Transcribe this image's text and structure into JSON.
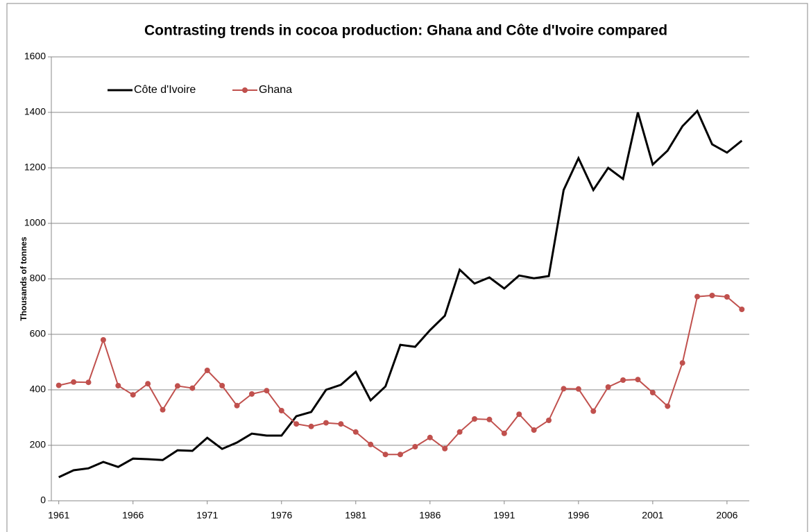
{
  "chart_data": {
    "type": "line",
    "title": "Contrasting trends in cocoa production: Ghana and Côte d'Ivoire compared",
    "y_label": "Thousands of tonnes",
    "x": [
      1961,
      1962,
      1963,
      1964,
      1965,
      1966,
      1967,
      1968,
      1969,
      1970,
      1971,
      1972,
      1973,
      1974,
      1975,
      1976,
      1977,
      1978,
      1979,
      1980,
      1981,
      1982,
      1983,
      1984,
      1985,
      1986,
      1987,
      1988,
      1989,
      1990,
      1991,
      1992,
      1993,
      1994,
      1995,
      1996,
      1997,
      1998,
      1999,
      2000,
      2001,
      2002,
      2003,
      2004,
      2005,
      2006,
      2007
    ],
    "series": [
      {
        "name": "Côte d'Ivoire",
        "color": "#000000",
        "markers": false,
        "values": [
          85,
          110,
          117,
          140,
          122,
          152,
          150,
          147,
          182,
          180,
          227,
          187,
          210,
          242,
          235,
          235,
          305,
          320,
          400,
          418,
          465,
          362,
          412,
          562,
          555,
          615,
          667,
          833,
          783,
          805,
          765,
          812,
          802,
          810,
          1120,
          1235,
          1120,
          1200,
          1160,
          1400,
          1212,
          1262,
          1350,
          1405,
          1285,
          1255,
          1298
        ]
      },
      {
        "name": "Ghana",
        "color": "#c0504d",
        "markers": true,
        "values": [
          416,
          428,
          427,
          580,
          415,
          382,
          422,
          328,
          414,
          406,
          470,
          415,
          343,
          385,
          397,
          325,
          277,
          268,
          281,
          277,
          248,
          203,
          167,
          167,
          195,
          228,
          188,
          248,
          295,
          293,
          243,
          312,
          255,
          290,
          404,
          403,
          323,
          410,
          435,
          437,
          390,
          341,
          497,
          736,
          740,
          735,
          690
        ]
      }
    ],
    "xlim": [
      1960.5,
      2007.5
    ],
    "xticks": [
      1961,
      1966,
      1971,
      1976,
      1981,
      1986,
      1991,
      1996,
      2001,
      2006
    ],
    "ylim": [
      0,
      1600
    ],
    "yticks": [
      0,
      200,
      400,
      600,
      800,
      1000,
      1200,
      1400,
      1600
    ],
    "grid": true,
    "legend": "top-left"
  }
}
